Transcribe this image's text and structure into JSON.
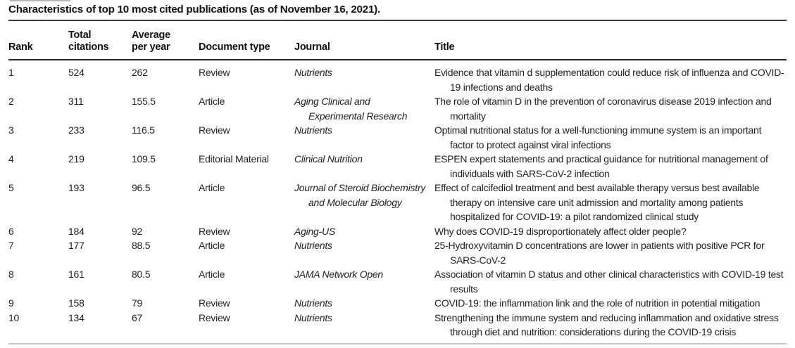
{
  "table": {
    "caption": "Characteristics of top 10 most cited publications (as of November 16, 2021).",
    "columns": [
      {
        "key": "rank",
        "label": "Rank"
      },
      {
        "key": "total_citations",
        "label": "Total\ncitations"
      },
      {
        "key": "avg_per_year",
        "label": "Average\nper year"
      },
      {
        "key": "document_type",
        "label": "Document type"
      },
      {
        "key": "journal",
        "label": "Journal"
      },
      {
        "key": "title",
        "label": "Title"
      }
    ],
    "rows": [
      {
        "rank": "1",
        "total_citations": "524",
        "avg_per_year": "262",
        "document_type": "Review",
        "journal": "Nutrients",
        "title": "Evidence that vitamin d supplementation could reduce risk of influenza and COVID-19 infections and deaths"
      },
      {
        "rank": "2",
        "total_citations": "311",
        "avg_per_year": "155.5",
        "document_type": "Article",
        "journal": "Aging Clinical and Experimental Research",
        "title": "The role of vitamin D in the prevention of coronavirus disease 2019 infection and mortality"
      },
      {
        "rank": "3",
        "total_citations": "233",
        "avg_per_year": "116.5",
        "document_type": "Review",
        "journal": "Nutrients",
        "title": "Optimal nutritional status for a well-functioning immune system is an important factor to protect against viral infections"
      },
      {
        "rank": "4",
        "total_citations": "219",
        "avg_per_year": "109.5",
        "document_type": "Editorial Material",
        "journal": "Clinical Nutrition",
        "title": "ESPEN expert statements and practical guidance for nutritional management of individuals with SARS-CoV-2 infection"
      },
      {
        "rank": "5",
        "total_citations": "193",
        "avg_per_year": "96.5",
        "document_type": "Article",
        "journal": "Journal of Steroid Biochemistry and Molecular Biology",
        "title": "Effect of calcifediol treatment and best available therapy versus best available therapy on intensive care unit admission and mortality among patients hospitalized for COVID-19: a pilot randomized clinical study"
      },
      {
        "rank": "6",
        "total_citations": "184",
        "avg_per_year": "92",
        "document_type": "Review",
        "journal": "Aging-US",
        "title": "Why does COVID-19 disproportionately affect older people?"
      },
      {
        "rank": "7",
        "total_citations": "177",
        "avg_per_year": "88.5",
        "document_type": "Article",
        "journal": "Nutrients",
        "title": "25-Hydroxyvitamin D concentrations are lower in patients with positive PCR for SARS-CoV-2"
      },
      {
        "rank": "8",
        "total_citations": "161",
        "avg_per_year": "80.5",
        "document_type": "Article",
        "journal": "JAMA Network Open",
        "title": "Association of vitamin D status and other clinical characteristics with COVID-19 test results"
      },
      {
        "rank": "9",
        "total_citations": "158",
        "avg_per_year": "79",
        "document_type": "Review",
        "journal": "Nutrients",
        "title": "COVID-19: the inflammation link and the role of nutrition in potential mitigation"
      },
      {
        "rank": "10",
        "total_citations": "134",
        "avg_per_year": "67",
        "document_type": "Review",
        "journal": "Nutrients",
        "title": "Strengthening the immune system and reducing inflammation and oxidative stress through diet and nutrition: considerations during the COVID-19 crisis"
      }
    ]
  },
  "colors": {
    "background": "#ffffff",
    "text": "#1f1f1f",
    "heading_text": "#111111",
    "caption_rule": "#3c3c3c",
    "header_rule": "#262626",
    "bottom_rule": "#c8c8c8",
    "artifact_line": "#b7b7b7"
  }
}
